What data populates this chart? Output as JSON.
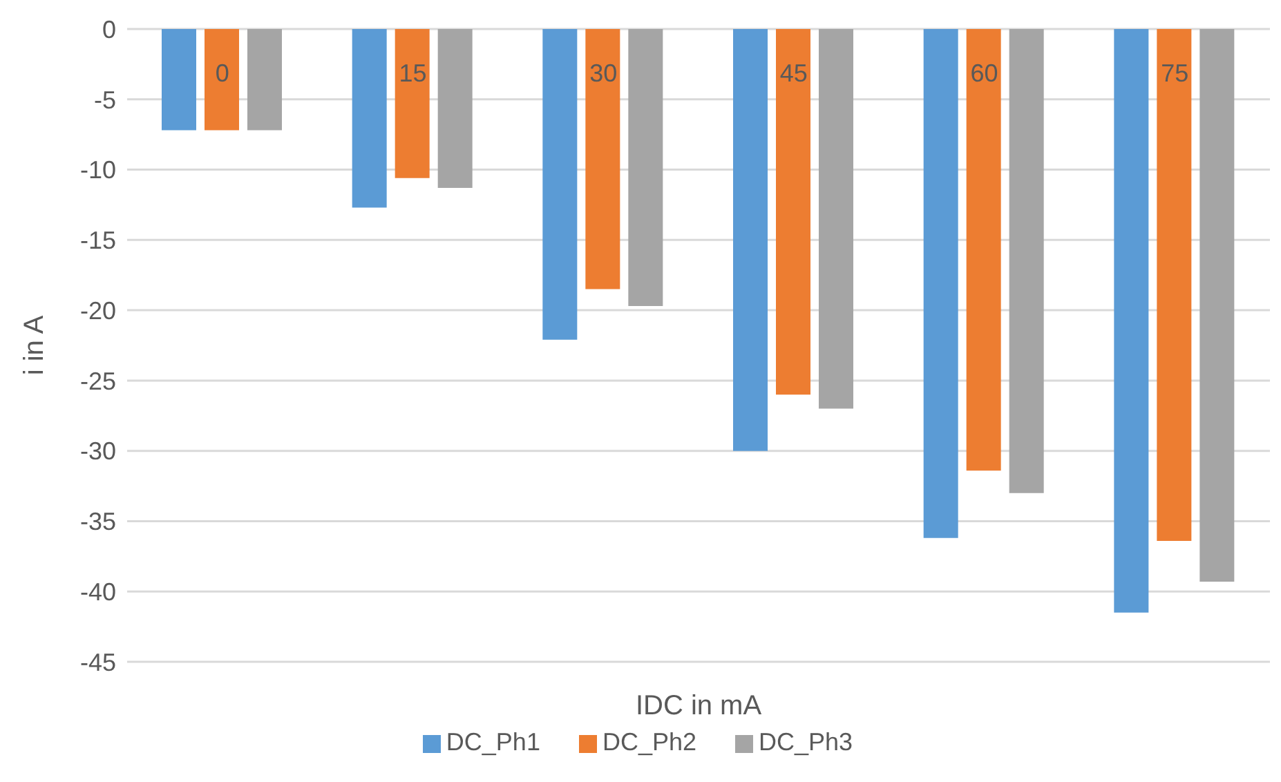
{
  "chart_data": {
    "type": "bar",
    "xlabel": "IDC in mA",
    "ylabel": "i in A",
    "categories": [
      "0",
      "15",
      "30",
      "45",
      "60",
      "75"
    ],
    "series": [
      {
        "name": "DC_Ph1",
        "color": "#5b9bd5",
        "values": [
          -7.2,
          -12.7,
          -22.1,
          -30.0,
          -36.2,
          -41.5
        ]
      },
      {
        "name": "DC_Ph2",
        "color": "#ed7d31",
        "values": [
          -7.2,
          -10.6,
          -18.5,
          -26.0,
          -31.4,
          -36.4
        ]
      },
      {
        "name": "DC_Ph3",
        "color": "#a5a5a5",
        "values": [
          -7.2,
          -11.3,
          -19.7,
          -27.0,
          -33.0,
          -39.3
        ]
      }
    ],
    "ylim": [
      -45,
      0
    ],
    "yticks": [
      -45,
      -40,
      -35,
      -30,
      -25,
      -20,
      -15,
      -10,
      -5,
      0
    ],
    "grid": "y",
    "legend": "bottom"
  }
}
